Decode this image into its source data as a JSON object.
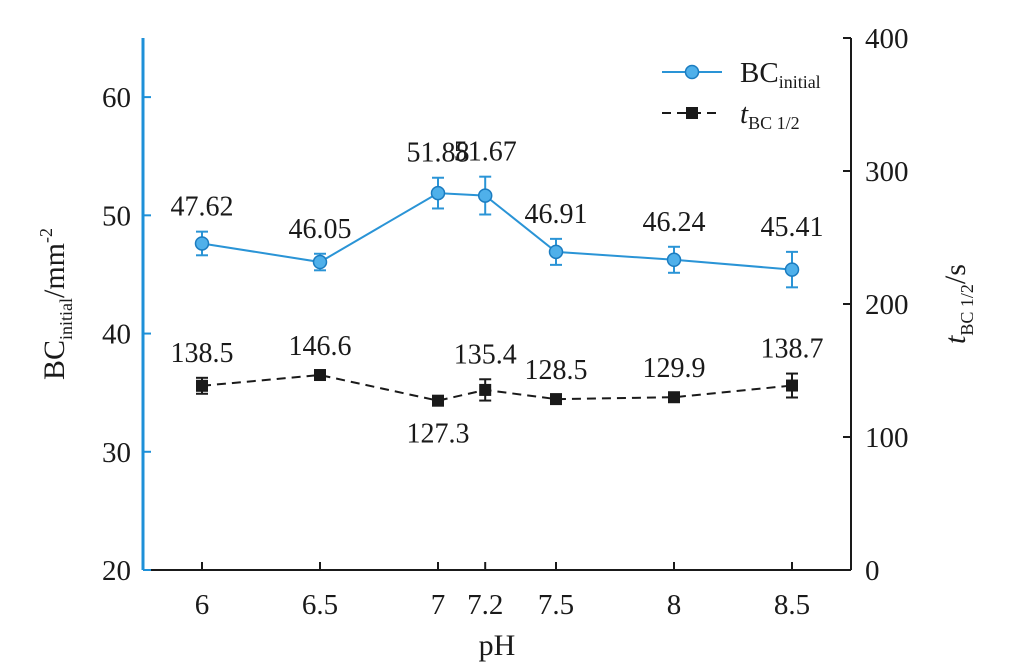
{
  "chart_data": {
    "type": "line",
    "x": [
      6,
      6.5,
      7,
      7.2,
      7.5,
      8,
      8.5
    ],
    "x_tick_labels": [
      "6",
      "6.5",
      "7",
      "7.2",
      "7.5",
      "8",
      "8.5"
    ],
    "xlabel": "pH",
    "y_left": {
      "label_main": "BC",
      "label_sub": "initial",
      "label_unit": "/mm",
      "label_sup": "-2",
      "ylim": [
        20,
        65
      ],
      "ticks": [
        "20",
        "30",
        "40",
        "50",
        "60"
      ],
      "color": "#1e90d8"
    },
    "y_right": {
      "label_italic": "t",
      "label_sub": "BC 1/2",
      "label_unit": "/s",
      "ylim": [
        0,
        400
      ],
      "ticks": [
        "0",
        "100",
        "200",
        "300",
        "400"
      ],
      "color": "#1a1a1a"
    },
    "series": [
      {
        "name_main": "BC",
        "name_sub": "initial",
        "axis": "left",
        "values": [
          47.62,
          46.05,
          51.88,
          51.67,
          46.91,
          46.24,
          45.41
        ],
        "labels": [
          "47.62",
          "46.05",
          "51.88",
          "51.67",
          "46.91",
          "46.24",
          "45.41"
        ],
        "errors": [
          1.0,
          0.7,
          1.3,
          1.6,
          1.1,
          1.1,
          1.5
        ],
        "color": "#2a94d6",
        "line_style": "solid",
        "marker": "circle"
      },
      {
        "name_italic": "t",
        "name_sub": "BC 1/2",
        "axis": "right",
        "values": [
          138.5,
          146.6,
          127.3,
          135.4,
          128.5,
          129.9,
          138.7
        ],
        "labels": [
          "138.5",
          "146.6",
          "127.3",
          "135.4",
          "128.5",
          "129.9",
          "138.7"
        ],
        "errors": [
          6,
          3,
          2,
          8,
          3,
          3,
          9
        ],
        "label_below": [
          false,
          false,
          true,
          false,
          false,
          false,
          false
        ],
        "color": "#1a1a1a",
        "line_style": "dashed",
        "marker": "square"
      }
    ],
    "legend_position": "top-right",
    "grid": false
  }
}
